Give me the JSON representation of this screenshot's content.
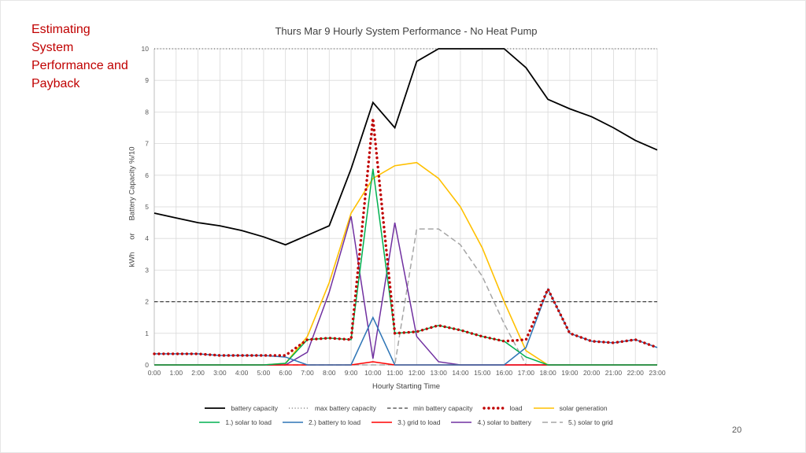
{
  "slide": {
    "side_title": "Estimating System Performance and Payback",
    "page_number": "20"
  },
  "chart_data": {
    "type": "line",
    "title": "Thurs Mar 9 Hourly System Performance - No Heat Pump",
    "xlabel": "Hourly Starting Time",
    "ylabel": "kWh      or      Battery Capacity %/10",
    "ylim": [
      0,
      10
    ],
    "yticks": [
      0,
      1,
      2,
      3,
      4,
      5,
      6,
      7,
      8,
      9,
      10
    ],
    "grid": true,
    "legend_position": "bottom",
    "categories": [
      "0:00",
      "1:00",
      "2:00",
      "3:00",
      "4:00",
      "5:00",
      "6:00",
      "7:00",
      "8:00",
      "9:00",
      "10:00",
      "11:00",
      "12:00",
      "13:00",
      "14:00",
      "15:00",
      "16:00",
      "17:00",
      "18:00",
      "19:00",
      "20:00",
      "21:00",
      "22:00",
      "23:00"
    ],
    "series": [
      {
        "name": "battery capacity",
        "color": "#000000",
        "dash": "solid",
        "width": 1.8,
        "values": [
          4.8,
          4.65,
          4.5,
          4.4,
          4.25,
          4.05,
          3.8,
          4.1,
          4.4,
          6.2,
          8.3,
          7.5,
          9.6,
          10,
          10,
          10,
          10,
          9.4,
          8.4,
          8.1,
          7.85,
          7.5,
          7.1,
          6.8
        ]
      },
      {
        "name": "max battery capacity",
        "color": "#404040",
        "dash": "dotted",
        "width": 1.1,
        "values": [
          10,
          10,
          10,
          10,
          10,
          10,
          10,
          10,
          10,
          10,
          10,
          10,
          10,
          10,
          10,
          10,
          10,
          10,
          10,
          10,
          10,
          10,
          10,
          10
        ]
      },
      {
        "name": "min battery capacity",
        "color": "#404040",
        "dash": "dashed",
        "width": 1.3,
        "values": [
          2,
          2,
          2,
          2,
          2,
          2,
          2,
          2,
          2,
          2,
          2,
          2,
          2,
          2,
          2,
          2,
          2,
          2,
          2,
          2,
          2,
          2,
          2,
          2
        ]
      },
      {
        "name": "load",
        "color": "#C00000",
        "dash": "round-dot",
        "width": 3.4,
        "values": [
          0.35,
          0.35,
          0.35,
          0.3,
          0.3,
          0.3,
          0.3,
          0.8,
          0.85,
          0.8,
          7.8,
          1.0,
          1.05,
          1.25,
          1.1,
          0.9,
          0.75,
          0.8,
          2.4,
          1.0,
          0.75,
          0.7,
          0.8,
          0.55
        ]
      },
      {
        "name": "solar generation",
        "color": "#FFC000",
        "dash": "solid",
        "width": 1.6,
        "values": [
          0,
          0,
          0,
          0,
          0,
          0,
          0.05,
          0.9,
          2.6,
          4.8,
          5.9,
          6.3,
          6.4,
          5.9,
          5.0,
          3.7,
          2.0,
          0.45,
          0,
          0,
          0,
          0,
          0,
          0
        ]
      },
      {
        "name": "1.) solar to load",
        "color": "#00B050",
        "dash": "solid",
        "width": 1.5,
        "values": [
          0,
          0,
          0,
          0,
          0,
          0,
          0.05,
          0.8,
          0.85,
          0.8,
          6.2,
          1.0,
          1.05,
          1.25,
          1.1,
          0.9,
          0.75,
          0.25,
          0,
          0,
          0,
          0,
          0,
          0
        ]
      },
      {
        "name": "2.) battery to load",
        "color": "#2E75B6",
        "dash": "solid",
        "width": 1.5,
        "values": [
          0.35,
          0.35,
          0.35,
          0.3,
          0.3,
          0.3,
          0.25,
          0,
          0,
          0,
          1.5,
          0,
          0,
          0,
          0,
          0,
          0,
          0.55,
          2.4,
          1.0,
          0.75,
          0.7,
          0.8,
          0.55
        ]
      },
      {
        "name": "3.) grid to load",
        "color": "#FF0000",
        "dash": "solid",
        "width": 1.5,
        "values": [
          0,
          0,
          0,
          0,
          0,
          0,
          0,
          0,
          0,
          0,
          0.1,
          0,
          0,
          0,
          0,
          0,
          0,
          0,
          0,
          0,
          0,
          0,
          0,
          0
        ]
      },
      {
        "name": "4.) solar to battery",
        "color": "#7030A0",
        "dash": "solid",
        "width": 1.5,
        "values": [
          0,
          0,
          0,
          0,
          0,
          0,
          0,
          0.4,
          2.3,
          4.7,
          0.2,
          4.5,
          0.9,
          0.1,
          0,
          0,
          0,
          0,
          0,
          0,
          0,
          0,
          0,
          0
        ]
      },
      {
        "name": "5.) solar to grid",
        "color": "#A6A6A6",
        "dash": "long-dash",
        "width": 1.5,
        "values": [
          0,
          0,
          0,
          0,
          0,
          0,
          0,
          0,
          0,
          0,
          0,
          0,
          4.3,
          4.3,
          3.8,
          2.8,
          1.3,
          0,
          0,
          0,
          0,
          0,
          0,
          0
        ]
      }
    ]
  }
}
